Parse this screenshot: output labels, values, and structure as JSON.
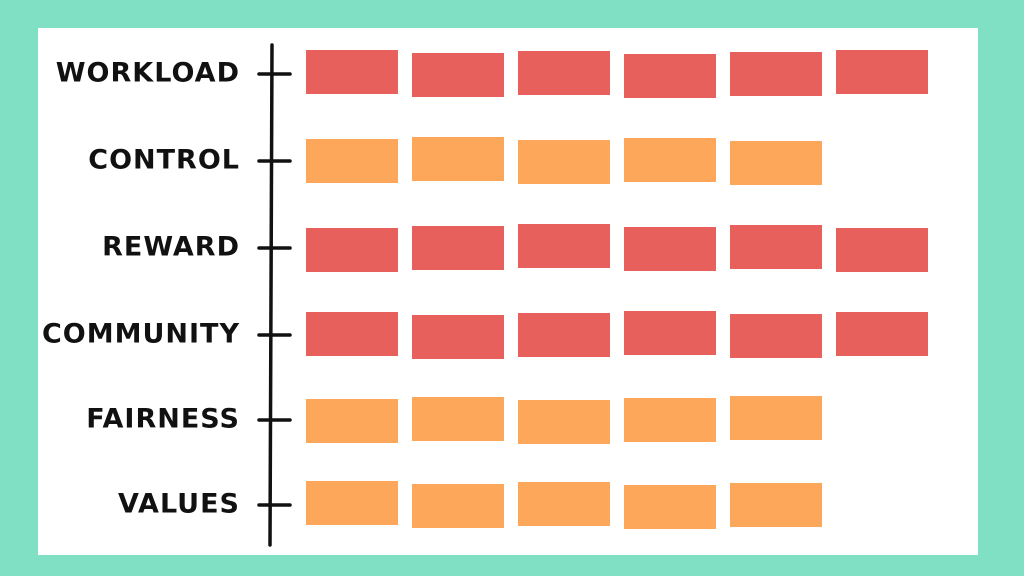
{
  "chart_data": {
    "type": "block-bar",
    "orientation": "horizontal",
    "categories": [
      "WORKLOAD",
      "CONTROL",
      "REWARD",
      "COMMUNITY",
      "FAIRNESS",
      "VALUES"
    ],
    "values": [
      6,
      5,
      6,
      6,
      5,
      5
    ],
    "colors": [
      "#e8605c",
      "#fda75a",
      "#e8605c",
      "#e8605c",
      "#fda75a",
      "#fda75a"
    ]
  }
}
